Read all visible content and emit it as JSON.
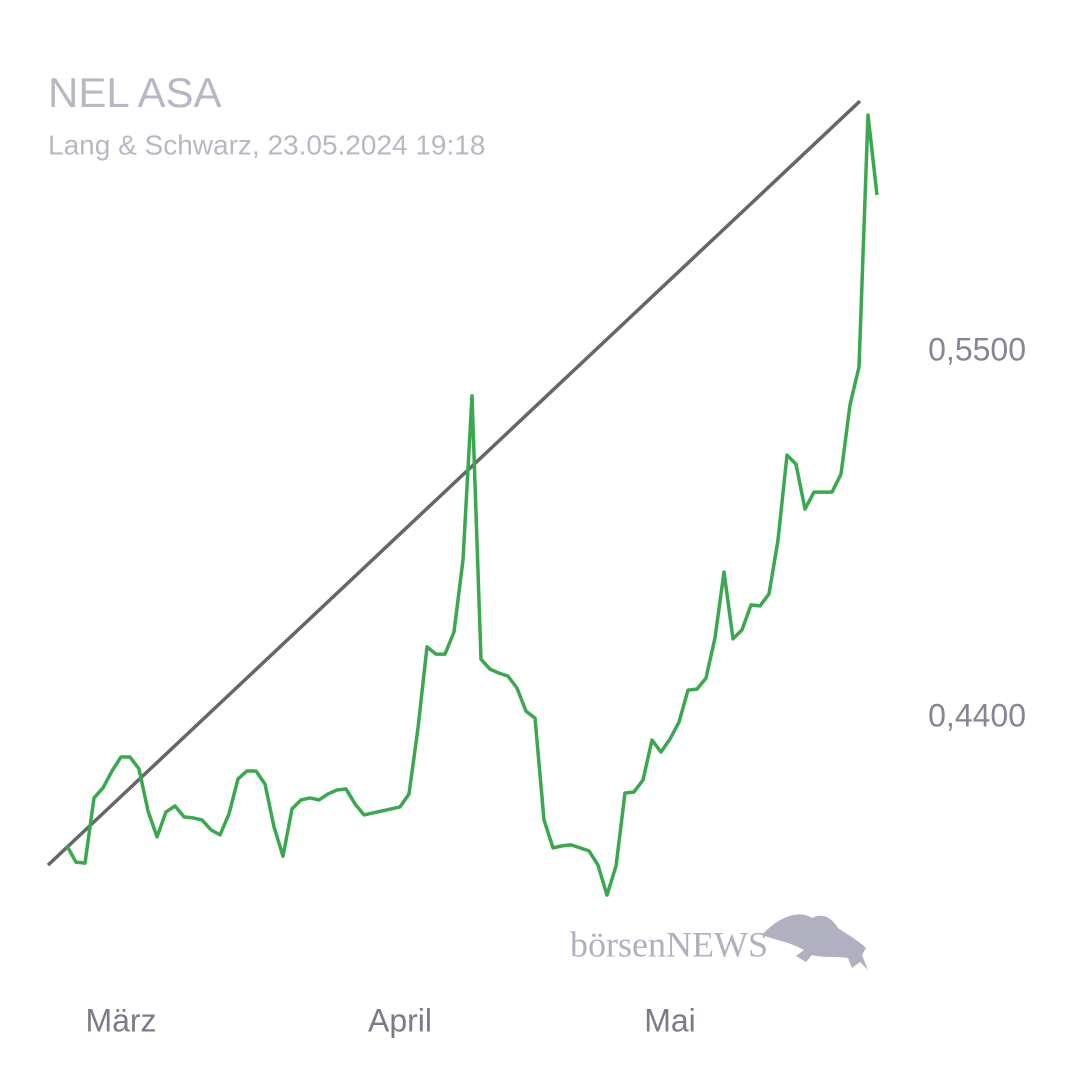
{
  "chart_data": {
    "type": "line",
    "title": "NEL ASA",
    "subtitle": "Lang & Schwarz, 23.05.2024 19:18",
    "watermark": "börsenNEWS",
    "categories": [
      null,
      null,
      null,
      null,
      null,
      null,
      "März",
      null,
      null,
      null,
      null,
      null,
      null,
      null,
      null,
      null,
      null,
      null,
      null,
      null,
      null,
      null,
      null,
      null,
      null,
      null,
      null,
      null,
      null,
      null,
      null,
      null,
      null,
      null,
      null,
      null,
      null,
      "April",
      null,
      null,
      null,
      null,
      null,
      null,
      null,
      null,
      null,
      null,
      null,
      null,
      null,
      null,
      null,
      null,
      null,
      null,
      null,
      null,
      null,
      null,
      null,
      null,
      null,
      null,
      null,
      null,
      null,
      "Mai",
      null,
      null,
      null,
      null,
      null,
      null,
      null,
      null,
      null,
      null,
      null,
      null,
      null,
      null,
      null,
      null,
      null,
      null,
      null,
      null,
      null,
      null,
      null
    ],
    "series": [
      {
        "color": "#3aa84f",
        "values": [
          0.4016,
          0.3967,
          0.3964,
          0.416,
          0.419,
          0.4241,
          0.4283,
          0.4283,
          0.4247,
          0.4121,
          0.4043,
          0.4118,
          0.4136,
          0.4103,
          0.41,
          0.4094,
          0.4064,
          0.4049,
          0.4112,
          0.4217,
          0.4241,
          0.4241,
          0.4202,
          0.4073,
          0.3985,
          0.4127,
          0.4154,
          0.416,
          0.4154,
          0.4172,
          0.4184,
          0.4187,
          0.4142,
          0.4109,
          0.4115,
          0.4121,
          0.4127,
          0.4133,
          0.4172,
          0.437,
          0.4614,
          0.4592,
          0.4592,
          0.4659,
          0.4875,
          0.5368,
          0.4577,
          0.4547,
          0.4535,
          0.4526,
          0.449,
          0.4421,
          0.44,
          0.4094,
          0.401,
          0.4016,
          0.4019,
          0.401,
          0.4001,
          0.3958,
          0.3868,
          0.3955,
          0.4175,
          0.4178,
          0.4214,
          0.4334,
          0.4298,
          0.4337,
          0.4388,
          0.4484,
          0.4487,
          0.452,
          0.4641,
          0.4839,
          0.4638,
          0.4665,
          0.474,
          0.4737,
          0.4773,
          0.4935,
          0.519,
          0.5163,
          0.5028,
          0.5079,
          0.5079,
          0.5079,
          0.5133,
          0.5341,
          0.5455,
          0.6212,
          0.5972
        ]
      }
    ],
    "trend_line": {
      "values": [
        0.3958,
        0.6254
      ],
      "color": "#666666"
    },
    "ylim": [
      0.36,
      0.64
    ],
    "yticks": [
      {
        "value": 0.44,
        "label": "0,4400"
      },
      {
        "value": 0.55,
        "label": "0,5500"
      }
    ],
    "grid": false
  }
}
